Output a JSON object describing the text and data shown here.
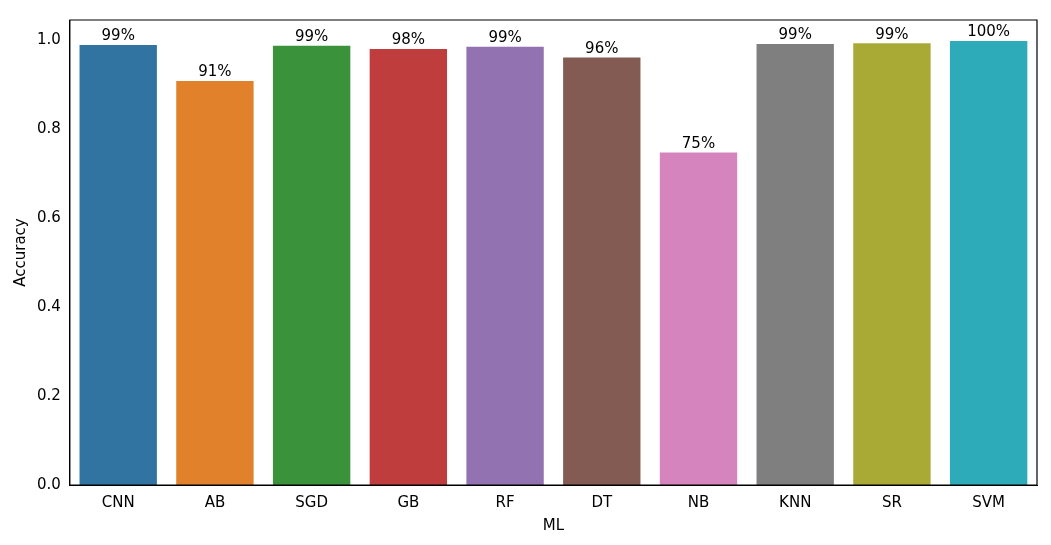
{
  "chart_data": {
    "type": "bar",
    "xlabel": "ML",
    "ylabel": "Accuracy",
    "categories": [
      "CNN",
      "AB",
      "SGD",
      "GB",
      "RF",
      "DT",
      "NB",
      "KNN",
      "SR",
      "SVM"
    ],
    "values": [
      0.989,
      0.908,
      0.987,
      0.98,
      0.985,
      0.961,
      0.747,
      0.991,
      0.993,
      0.998
    ],
    "value_labels": [
      "99%",
      "91%",
      "99%",
      "98%",
      "99%",
      "96%",
      "75%",
      "99%",
      "99%",
      "100%"
    ],
    "colors": [
      "#3274a1",
      "#e1812c",
      "#3a923a",
      "#c03d3e",
      "#9372b2",
      "#845b53",
      "#d684bd",
      "#7f7f7f",
      "#a9aa35",
      "#2eabb8"
    ],
    "ylim": [
      0,
      1.045
    ],
    "yticks": [
      {
        "value": 0,
        "label": "0.0"
      },
      0.2,
      0.4,
      0.6,
      0.8,
      {
        "value": 1,
        "label": "1.0"
      }
    ],
    "grid": false,
    "legend": false
  }
}
